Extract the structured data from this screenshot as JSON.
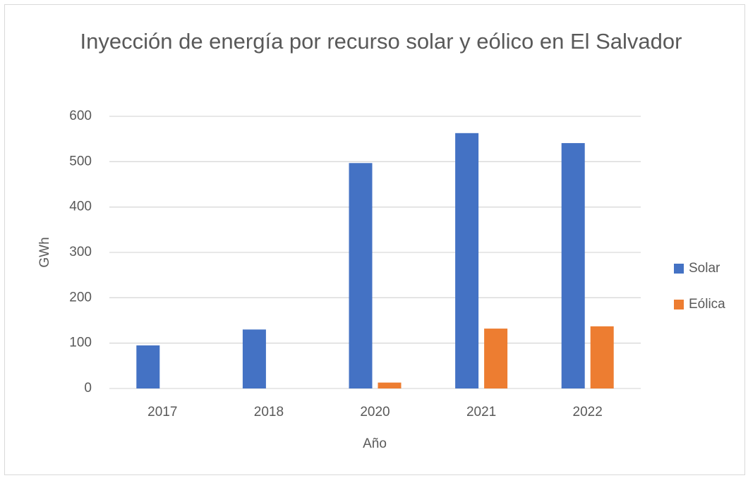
{
  "chart_data": {
    "type": "bar",
    "title": "Inyección de energía por recurso solar y eólico en El Salvador",
    "x_label": "Año",
    "y_label": "GWh",
    "categories": [
      "2017",
      "2018",
      "2020",
      "2021",
      "2022"
    ],
    "series": [
      {
        "name": "Solar",
        "color": "#4472c4",
        "values": [
          95,
          130,
          497,
          563,
          541
        ]
      },
      {
        "name": "Eólica",
        "color": "#ed7d31",
        "values": [
          0,
          0,
          13,
          132,
          137
        ]
      }
    ],
    "ylim": [
      0,
      600
    ],
    "yticks": [
      0,
      100,
      200,
      300,
      400,
      500,
      600
    ],
    "grid": true,
    "legend": "right"
  }
}
